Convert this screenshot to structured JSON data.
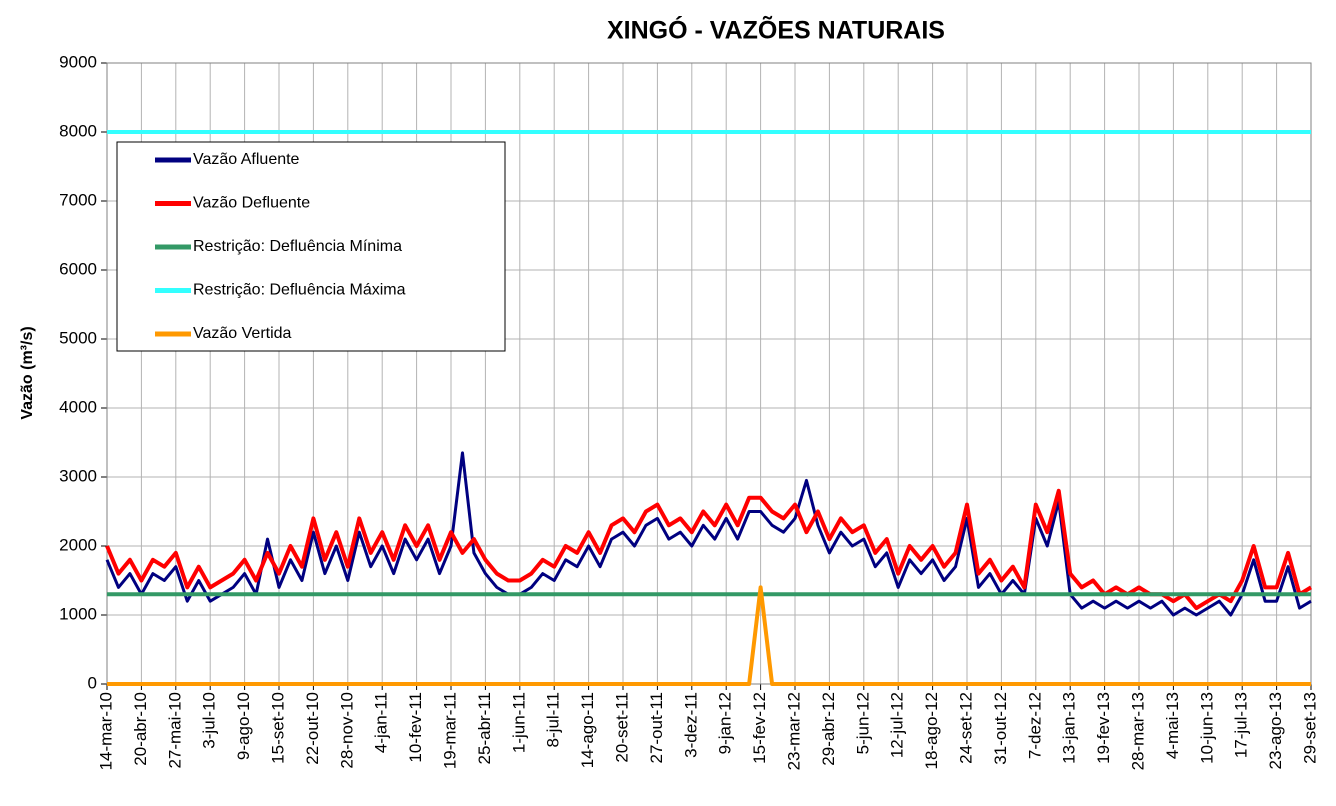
{
  "chart_data": {
    "type": "line",
    "title": "XINGÓ - VAZÕES NATURAIS",
    "y_label": "Vazão (m³/s)",
    "categories": [
      "14-mar-10",
      null,
      null,
      "20-abr-10",
      null,
      null,
      "27-mai-10",
      null,
      null,
      "3-jul-10",
      null,
      null,
      "9-ago-10",
      null,
      null,
      "15-set-10",
      null,
      null,
      "22-out-10",
      null,
      null,
      "28-nov-10",
      null,
      null,
      "4-jan-11",
      null,
      null,
      "10-fev-11",
      null,
      null,
      "19-mar-11",
      null,
      null,
      "25-abr-11",
      null,
      null,
      "1-jun-11",
      null,
      null,
      "8-jul-11",
      null,
      null,
      "14-ago-11",
      null,
      null,
      "20-set-11",
      null,
      null,
      "27-out-11",
      null,
      null,
      "3-dez-11",
      null,
      null,
      "9-jan-12",
      null,
      null,
      "15-fev-12",
      null,
      null,
      "23-mar-12",
      null,
      null,
      "29-abr-12",
      null,
      null,
      "5-jun-12",
      null,
      null,
      "12-jul-12",
      null,
      null,
      "18-ago-12",
      null,
      null,
      "24-set-12",
      null,
      null,
      "31-out-12",
      null,
      null,
      "7-dez-12",
      null,
      null,
      "13-jan-13",
      null,
      null,
      "19-fev-13",
      null,
      null,
      "28-mar-13",
      null,
      null,
      "4-mai-13",
      null,
      null,
      "10-jun-13",
      null,
      null,
      "17-jul-13",
      null,
      null,
      "23-ago-13",
      null,
      null,
      "29-set-13"
    ],
    "series": [
      {
        "name": "Vazão Afluente",
        "color": "#000080",
        "width": 3,
        "values": [
          1800,
          1400,
          1600,
          1300,
          1600,
          1500,
          1700,
          1200,
          1500,
          1200,
          1300,
          1400,
          1600,
          1300,
          2100,
          1400,
          1800,
          1500,
          2200,
          1600,
          2000,
          1500,
          2200,
          1700,
          2000,
          1600,
          2100,
          1800,
          2100,
          1600,
          2000,
          3350,
          1900,
          1600,
          1400,
          1300,
          1300,
          1400,
          1600,
          1500,
          1800,
          1700,
          2000,
          1700,
          2100,
          2200,
          2000,
          2300,
          2400,
          2100,
          2200,
          2000,
          2300,
          2100,
          2400,
          2100,
          2500,
          2500,
          2300,
          2200,
          2400,
          2950,
          2300,
          1900,
          2200,
          2000,
          2100,
          1700,
          1900,
          1400,
          1800,
          1600,
          1800,
          1500,
          1700,
          2400,
          1400,
          1600,
          1300,
          1500,
          1300,
          2400,
          2000,
          2650,
          1300,
          1100,
          1200,
          1100,
          1200,
          1100,
          1200,
          1100,
          1200,
          1000,
          1100,
          1000,
          1100,
          1200,
          1000,
          1300,
          1800,
          1200,
          1200,
          1700,
          1100,
          1200
        ]
      },
      {
        "name": "Vazão Defluente",
        "color": "#ff0000",
        "width": 4,
        "values": [
          2000,
          1600,
          1800,
          1500,
          1800,
          1700,
          1900,
          1400,
          1700,
          1400,
          1500,
          1600,
          1800,
          1500,
          1900,
          1600,
          2000,
          1700,
          2400,
          1800,
          2200,
          1700,
          2400,
          1900,
          2200,
          1800,
          2300,
          2000,
          2300,
          1800,
          2200,
          1900,
          2100,
          1800,
          1600,
          1500,
          1500,
          1600,
          1800,
          1700,
          2000,
          1900,
          2200,
          1900,
          2300,
          2400,
          2200,
          2500,
          2600,
          2300,
          2400,
          2200,
          2500,
          2300,
          2600,
          2300,
          2700,
          2700,
          2500,
          2400,
          2600,
          2200,
          2500,
          2100,
          2400,
          2200,
          2300,
          1900,
          2100,
          1600,
          2000,
          1800,
          2000,
          1700,
          1900,
          2600,
          1600,
          1800,
          1500,
          1700,
          1400,
          2600,
          2200,
          2800,
          1600,
          1400,
          1500,
          1300,
          1400,
          1300,
          1400,
          1300,
          1300,
          1200,
          1300,
          1100,
          1200,
          1300,
          1200,
          1500,
          2000,
          1400,
          1400,
          1900,
          1300,
          1400
        ]
      },
      {
        "name": "Restrição: Defluência Mínima",
        "color": "#339966",
        "width": 4,
        "value": 1300
      },
      {
        "name": "Restrição: Defluência Máxima",
        "color": "#33ffff",
        "width": 4,
        "value": 8000
      },
      {
        "name": "Vazão Vertida",
        "color": "#ff9900",
        "width": 4,
        "values": [
          0,
          0,
          0,
          0,
          0,
          0,
          0,
          0,
          0,
          0,
          0,
          0,
          0,
          0,
          0,
          0,
          0,
          0,
          0,
          0,
          0,
          0,
          0,
          0,
          0,
          0,
          0,
          0,
          0,
          0,
          0,
          0,
          0,
          0,
          0,
          0,
          0,
          0,
          0,
          0,
          0,
          0,
          0,
          0,
          0,
          0,
          0,
          0,
          0,
          0,
          0,
          0,
          0,
          0,
          0,
          0,
          0,
          1400,
          0,
          0,
          0,
          0,
          0,
          0,
          0,
          0,
          0,
          0,
          0,
          0,
          0,
          0,
          0,
          0,
          0,
          0,
          0,
          0,
          0,
          0,
          0,
          0,
          0,
          0,
          0,
          0,
          0,
          0,
          0,
          0,
          0,
          0,
          0,
          0,
          0,
          0,
          0,
          0,
          0,
          0,
          0,
          0,
          0,
          0,
          0,
          0
        ]
      }
    ],
    "ylim": [
      0,
      9000
    ],
    "yticks": [
      0,
      1000,
      2000,
      3000,
      4000,
      5000,
      6000,
      7000,
      8000,
      9000
    ],
    "grid": true,
    "legend": "upper-left"
  }
}
